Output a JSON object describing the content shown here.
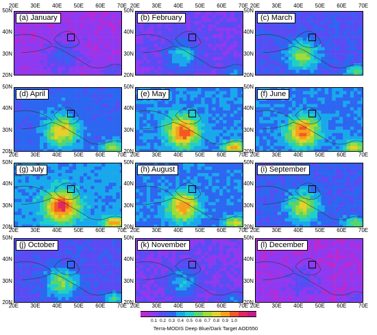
{
  "panels": [
    {
      "title": "(a) January",
      "level": 0.12
    },
    {
      "title": "(b) February",
      "level": 0.22
    },
    {
      "title": "(c) March",
      "level": 0.32
    },
    {
      "title": "(d) April",
      "level": 0.4
    },
    {
      "title": "(e) May",
      "level": 0.48
    },
    {
      "title": "(f) June",
      "level": 0.46
    },
    {
      "title": "(g) July",
      "level": 0.52
    },
    {
      "title": "(h) August",
      "level": 0.44
    },
    {
      "title": "(i) September",
      "level": 0.36
    },
    {
      "title": "(j) October",
      "level": 0.3
    },
    {
      "title": "(k) November",
      "level": 0.2
    },
    {
      "title": "(l) December",
      "level": 0.1
    }
  ],
  "lat_labels": [
    "50N",
    "40N",
    "30N",
    "20N"
  ],
  "lon_labels": [
    "20E",
    "30E",
    "40E",
    "50E",
    "60E",
    "70E"
  ],
  "colorbar": {
    "title": "Terra-MODIS Deep Blue/Dark Target AOD550",
    "ticks": [
      "0.1",
      "0.2",
      "0.3",
      "0.4",
      "0.5",
      "0.6",
      "0.7",
      "0.8",
      "0.9",
      "1.0"
    ],
    "colors": [
      "#b82ad2",
      "#8f3af0",
      "#5a4cf4",
      "#2d66f0",
      "#1aa8ec",
      "#1fd0c8",
      "#5ad46a",
      "#9fdc38",
      "#e4d12a",
      "#f4a11e",
      "#f25a22",
      "#e4265e",
      "#c41c8a"
    ]
  }
}
